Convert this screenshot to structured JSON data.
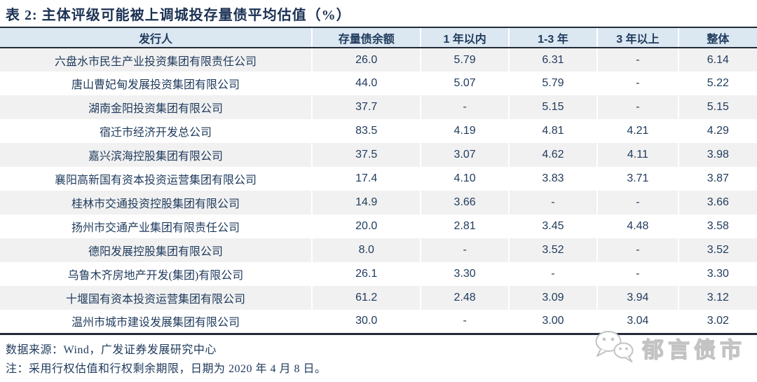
{
  "title": "表 2:  主体评级可能被上调城投存量债平均估值（%）",
  "table": {
    "columns": [
      "发行人",
      "存量债余额",
      "1 年以内",
      "1-3 年",
      "3 年以上",
      "整体"
    ],
    "rows": [
      [
        "六盘水市民生产业投资集团有限责任公司",
        "26.0",
        "5.79",
        "6.31",
        "-",
        "6.14"
      ],
      [
        "唐山曹妃甸发展投资集团有限公司",
        "44.0",
        "5.07",
        "5.79",
        "-",
        "5.22"
      ],
      [
        "湖南金阳投资集团有限公司",
        "37.7",
        "-",
        "5.15",
        "-",
        "5.15"
      ],
      [
        "宿迁市经济开发总公司",
        "83.5",
        "4.19",
        "4.81",
        "4.21",
        "4.29"
      ],
      [
        "嘉兴滨海控股集团有限公司",
        "37.5",
        "3.07",
        "4.62",
        "4.11",
        "3.98"
      ],
      [
        "襄阳高新国有资本投资运营集团有限公司",
        "17.4",
        "4.10",
        "3.83",
        "3.71",
        "3.87"
      ],
      [
        "桂林市交通投资控股集团有限公司",
        "14.9",
        "3.66",
        "-",
        "-",
        "3.66"
      ],
      [
        "扬州市交通产业集团有限责任公司",
        "20.0",
        "2.81",
        "3.45",
        "4.48",
        "3.58"
      ],
      [
        "德阳发展控股集团有限公司",
        "8.0",
        "-",
        "3.52",
        "-",
        "3.52"
      ],
      [
        "乌鲁木齐房地产开发(集团)有限公司",
        "26.1",
        "3.30",
        "-",
        "-",
        "3.30"
      ],
      [
        "十堰国有资本投资运营集团有限公司",
        "61.2",
        "2.48",
        "3.09",
        "3.94",
        "3.12"
      ],
      [
        "温州市城市建设发展集团有限公司",
        "30.0",
        "-",
        "3.00",
        "3.04",
        "3.02"
      ]
    ]
  },
  "footer": {
    "source": "数据来源：Wind，广发证券发展研究中心",
    "note": "注：采用行权估值和行权剩余期限，日期为 2020 年 4 月 8 日。"
  },
  "watermark": {
    "label": "郁言债市",
    "icon": "wechat-icon"
  },
  "colors": {
    "text_navy": "#1f3a5c",
    "title_navy": "#1b3153",
    "rule_dark": "#232b3a",
    "header_bg": "#dbe7f1",
    "stripe_bg": "#f1f1f1",
    "watermark_gray": "#c3c3c3"
  }
}
